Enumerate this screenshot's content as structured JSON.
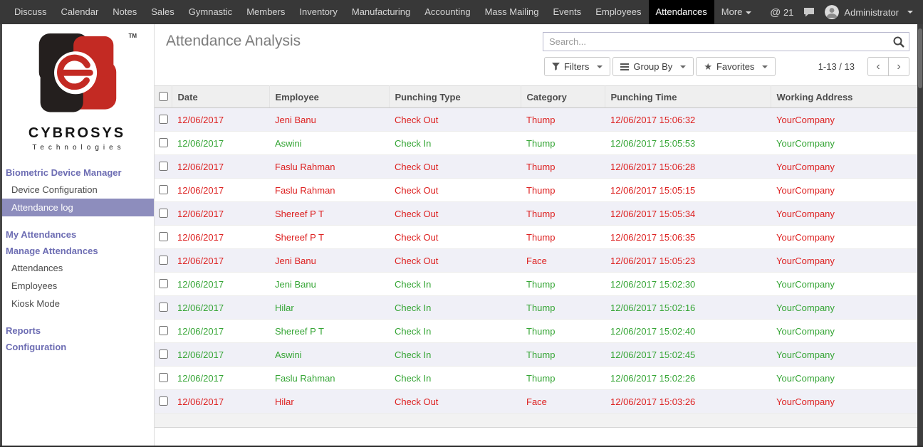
{
  "navbar": {
    "items": [
      {
        "label": "Discuss"
      },
      {
        "label": "Calendar"
      },
      {
        "label": "Notes"
      },
      {
        "label": "Sales"
      },
      {
        "label": "Gymnastic"
      },
      {
        "label": "Members"
      },
      {
        "label": "Inventory"
      },
      {
        "label": "Manufacturing"
      },
      {
        "label": "Accounting"
      },
      {
        "label": "Mass Mailing"
      },
      {
        "label": "Events"
      },
      {
        "label": "Employees"
      },
      {
        "label": "Attendances",
        "active": true
      },
      {
        "label": "More",
        "caret": true
      }
    ],
    "notification_count": "21",
    "user_name": "Administrator"
  },
  "sidebar": {
    "brand": {
      "name": "CYBROSYS",
      "subtitle": "Technologies",
      "trademark": "TM"
    },
    "menu": [
      {
        "type": "heading",
        "label": "Biometric Device Manager"
      },
      {
        "type": "item",
        "label": "Device Configuration"
      },
      {
        "type": "item",
        "label": "Attendance log",
        "selected": true
      },
      {
        "type": "heading",
        "label": "My Attendances"
      },
      {
        "type": "heading",
        "label": "Manage Attendances"
      },
      {
        "type": "item",
        "label": "Attendances"
      },
      {
        "type": "item",
        "label": "Employees"
      },
      {
        "type": "item",
        "label": "Kiosk Mode"
      },
      {
        "type": "heading",
        "label": "Reports"
      },
      {
        "type": "heading",
        "label": "Configuration"
      }
    ]
  },
  "content": {
    "title": "Attendance Analysis",
    "search": {
      "placeholder": "Search..."
    },
    "toolbar": {
      "filters": "Filters",
      "group_by": "Group By",
      "favorites": "Favorites"
    },
    "pager": {
      "range": "1-13 / 13"
    },
    "table": {
      "columns": [
        "Date",
        "Employee",
        "Punching Type",
        "Category",
        "Punching Time",
        "Working Address"
      ],
      "rows": [
        {
          "date": "12/06/2017",
          "employee": "Jeni Banu",
          "punching_type": "Check Out",
          "category": "Thump",
          "punching_time": "12/06/2017 15:06:32",
          "working_address": "YourCompany",
          "status": "out"
        },
        {
          "date": "12/06/2017",
          "employee": "Aswini",
          "punching_type": "Check In",
          "category": "Thump",
          "punching_time": "12/06/2017 15:05:53",
          "working_address": "YourCompany",
          "status": "in"
        },
        {
          "date": "12/06/2017",
          "employee": "Faslu Rahman",
          "punching_type": "Check Out",
          "category": "Thump",
          "punching_time": "12/06/2017 15:06:28",
          "working_address": "YourCompany",
          "status": "out"
        },
        {
          "date": "12/06/2017",
          "employee": "Faslu Rahman",
          "punching_type": "Check Out",
          "category": "Thump",
          "punching_time": "12/06/2017 15:05:15",
          "working_address": "YourCompany",
          "status": "out"
        },
        {
          "date": "12/06/2017",
          "employee": "Shereef P T",
          "punching_type": "Check Out",
          "category": "Thump",
          "punching_time": "12/06/2017 15:05:34",
          "working_address": "YourCompany",
          "status": "out"
        },
        {
          "date": "12/06/2017",
          "employee": "Shereef P T",
          "punching_type": "Check Out",
          "category": "Thump",
          "punching_time": "12/06/2017 15:06:35",
          "working_address": "YourCompany",
          "status": "out"
        },
        {
          "date": "12/06/2017",
          "employee": "Jeni Banu",
          "punching_type": "Check Out",
          "category": "Face",
          "punching_time": "12/06/2017 15:05:23",
          "working_address": "YourCompany",
          "status": "out"
        },
        {
          "date": "12/06/2017",
          "employee": "Jeni Banu",
          "punching_type": "Check In",
          "category": "Thump",
          "punching_time": "12/06/2017 15:02:30",
          "working_address": "YourCompany",
          "status": "in"
        },
        {
          "date": "12/06/2017",
          "employee": "Hilar",
          "punching_type": "Check In",
          "category": "Thump",
          "punching_time": "12/06/2017 15:02:16",
          "working_address": "YourCompany",
          "status": "in"
        },
        {
          "date": "12/06/2017",
          "employee": "Shereef P T",
          "punching_type": "Check In",
          "category": "Thump",
          "punching_time": "12/06/2017 15:02:40",
          "working_address": "YourCompany",
          "status": "in"
        },
        {
          "date": "12/06/2017",
          "employee": "Aswini",
          "punching_type": "Check In",
          "category": "Thump",
          "punching_time": "12/06/2017 15:02:45",
          "working_address": "YourCompany",
          "status": "in"
        },
        {
          "date": "12/06/2017",
          "employee": "Faslu Rahman",
          "punching_type": "Check In",
          "category": "Thump",
          "punching_time": "12/06/2017 15:02:26",
          "working_address": "YourCompany",
          "status": "in"
        },
        {
          "date": "12/06/2017",
          "employee": "Hilar",
          "punching_type": "Check Out",
          "category": "Face",
          "punching_time": "12/06/2017 15:03:26",
          "working_address": "YourCompany",
          "status": "out"
        }
      ]
    }
  },
  "colors": {
    "danger": "#dd2020",
    "success": "#35a535",
    "accent": "#6d6db3",
    "selected_bg": "#8d8dbd",
    "navbar_bg": "#383838",
    "navbar_active_bg": "#000000",
    "logo_red": "#c32a23",
    "logo_black": "#241f1e"
  }
}
